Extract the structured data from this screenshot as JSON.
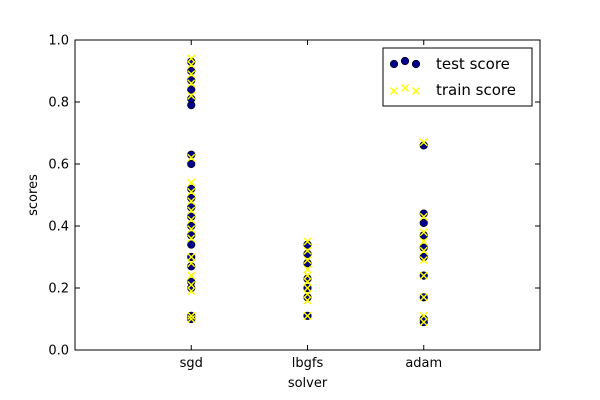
{
  "chart_data": {
    "type": "scatter",
    "title": "",
    "xlabel": "solver",
    "ylabel": "scores",
    "categories": [
      "sgd",
      "lbgfs",
      "adam"
    ],
    "ylim": [
      0,
      1
    ],
    "yticks": [
      "0.0",
      "0.2",
      "0.4",
      "0.6",
      "0.8",
      "1.0"
    ],
    "grid": false,
    "legend_position": "top-right",
    "series": [
      {
        "name": "test score",
        "marker": "circle",
        "color": "#00008b",
        "points": [
          {
            "x": "sgd",
            "y": 0.1
          },
          {
            "x": "sgd",
            "y": 0.11
          },
          {
            "x": "sgd",
            "y": 0.2
          },
          {
            "x": "sgd",
            "y": 0.22
          },
          {
            "x": "sgd",
            "y": 0.27
          },
          {
            "x": "sgd",
            "y": 0.3
          },
          {
            "x": "sgd",
            "y": 0.34
          },
          {
            "x": "sgd",
            "y": 0.37
          },
          {
            "x": "sgd",
            "y": 0.4
          },
          {
            "x": "sgd",
            "y": 0.43
          },
          {
            "x": "sgd",
            "y": 0.46
          },
          {
            "x": "sgd",
            "y": 0.49
          },
          {
            "x": "sgd",
            "y": 0.52
          },
          {
            "x": "sgd",
            "y": 0.6
          },
          {
            "x": "sgd",
            "y": 0.63
          },
          {
            "x": "sgd",
            "y": 0.79
          },
          {
            "x": "sgd",
            "y": 0.81
          },
          {
            "x": "sgd",
            "y": 0.84
          },
          {
            "x": "sgd",
            "y": 0.87
          },
          {
            "x": "sgd",
            "y": 0.9
          },
          {
            "x": "sgd",
            "y": 0.93
          },
          {
            "x": "lbgfs",
            "y": 0.11
          },
          {
            "x": "lbgfs",
            "y": 0.17
          },
          {
            "x": "lbgfs",
            "y": 0.2
          },
          {
            "x": "lbgfs",
            "y": 0.23
          },
          {
            "x": "lbgfs",
            "y": 0.28
          },
          {
            "x": "lbgfs",
            "y": 0.31
          },
          {
            "x": "lbgfs",
            "y": 0.34
          },
          {
            "x": "adam",
            "y": 0.09
          },
          {
            "x": "adam",
            "y": 0.1
          },
          {
            "x": "adam",
            "y": 0.17
          },
          {
            "x": "adam",
            "y": 0.24
          },
          {
            "x": "adam",
            "y": 0.3
          },
          {
            "x": "adam",
            "y": 0.33
          },
          {
            "x": "adam",
            "y": 0.37
          },
          {
            "x": "adam",
            "y": 0.41
          },
          {
            "x": "adam",
            "y": 0.44
          },
          {
            "x": "adam",
            "y": 0.66
          }
        ]
      },
      {
        "name": "train score",
        "marker": "x",
        "color": "#ffff00",
        "points": [
          {
            "x": "sgd",
            "y": 0.1
          },
          {
            "x": "sgd",
            "y": 0.11
          },
          {
            "x": "sgd",
            "y": 0.19
          },
          {
            "x": "sgd",
            "y": 0.21
          },
          {
            "x": "sgd",
            "y": 0.24
          },
          {
            "x": "sgd",
            "y": 0.28
          },
          {
            "x": "sgd",
            "y": 0.3
          },
          {
            "x": "sgd",
            "y": 0.36
          },
          {
            "x": "sgd",
            "y": 0.39
          },
          {
            "x": "sgd",
            "y": 0.42
          },
          {
            "x": "sgd",
            "y": 0.45
          },
          {
            "x": "sgd",
            "y": 0.48
          },
          {
            "x": "sgd",
            "y": 0.51
          },
          {
            "x": "sgd",
            "y": 0.54
          },
          {
            "x": "sgd",
            "y": 0.62
          },
          {
            "x": "sgd",
            "y": 0.82
          },
          {
            "x": "sgd",
            "y": 0.86
          },
          {
            "x": "sgd",
            "y": 0.89
          },
          {
            "x": "sgd",
            "y": 0.92
          },
          {
            "x": "sgd",
            "y": 0.94
          },
          {
            "x": "lbgfs",
            "y": 0.11
          },
          {
            "x": "lbgfs",
            "y": 0.16
          },
          {
            "x": "lbgfs",
            "y": 0.18
          },
          {
            "x": "lbgfs",
            "y": 0.2
          },
          {
            "x": "lbgfs",
            "y": 0.22
          },
          {
            "x": "lbgfs",
            "y": 0.24
          },
          {
            "x": "lbgfs",
            "y": 0.26
          },
          {
            "x": "lbgfs",
            "y": 0.29
          },
          {
            "x": "lbgfs",
            "y": 0.32
          },
          {
            "x": "lbgfs",
            "y": 0.35
          },
          {
            "x": "adam",
            "y": 0.09
          },
          {
            "x": "adam",
            "y": 0.11
          },
          {
            "x": "adam",
            "y": 0.17
          },
          {
            "x": "adam",
            "y": 0.24
          },
          {
            "x": "adam",
            "y": 0.29
          },
          {
            "x": "adam",
            "y": 0.32
          },
          {
            "x": "adam",
            "y": 0.35
          },
          {
            "x": "adam",
            "y": 0.38
          },
          {
            "x": "adam",
            "y": 0.43
          },
          {
            "x": "adam",
            "y": 0.67
          }
        ]
      }
    ]
  }
}
